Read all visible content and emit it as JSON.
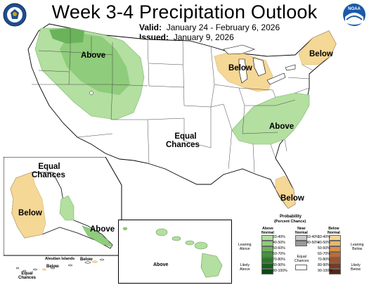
{
  "header": {
    "title": "Week 3-4 Precipitation Outlook",
    "valid_label": "Valid:",
    "valid_value": "January 24 - February 6, 2026",
    "issued_label": "Issued:",
    "issued_value": "January 9, 2026"
  },
  "logos": {
    "left": "commerce-seal-icon",
    "right": "noaa-logo-icon",
    "noaa_text": "NOAA"
  },
  "map_labels": {
    "above_northwest": "Above",
    "below_great_lakes": "Below",
    "below_northeast": "Below",
    "above_southeast": "Above",
    "equal_center_line1": "Equal",
    "equal_center_line2": "Chances",
    "below_florida": "Below",
    "alaska_equal_line1": "Equal",
    "alaska_equal_line2": "Chances",
    "alaska_below": "Below",
    "alaska_above": "Above",
    "aleutian_title": "Aleutian Islands",
    "aleutian_below_1": "Below",
    "aleutian_below_2": "Below",
    "aleutian_equal_line1": "Equal",
    "aleutian_equal_line2": "Chances",
    "hawaii_above": "Above"
  },
  "legend": {
    "title_line1": "Probability",
    "title_line2": "(Percent Chance)",
    "above_header": [
      "Above",
      "Normal"
    ],
    "near_header": [
      "Near",
      "Normal"
    ],
    "below_header": [
      "Below",
      "Normal"
    ],
    "leaning_above": [
      "Leaning",
      "Above"
    ],
    "likely_above": [
      "Likely",
      "Above"
    ],
    "leaning_below": [
      "Leaning",
      "Below"
    ],
    "likely_below": [
      "Likely",
      "Below"
    ],
    "equal_chances": [
      "Equal",
      "Chances"
    ],
    "ranges": [
      "33-40%",
      "40-50%",
      "50-60%",
      "60-70%",
      "70-80%",
      "80-90%",
      "90-100%"
    ],
    "near_ranges": [
      "33-40%",
      "40-50%"
    ],
    "above_colors": [
      "#b3dfa0",
      "#8fcc7b",
      "#6ab35a",
      "#3f9638",
      "#2a7a27",
      "#17611a",
      "#0b4a10"
    ],
    "near_colors": [
      "#c8c8c8",
      "#9a9a9a"
    ],
    "below_colors": [
      "#f5d796",
      "#e9b66c",
      "#d99048",
      "#c06a35",
      "#a0522d",
      "#7a3a1f",
      "#552615"
    ],
    "equal_color": "#ffffff"
  }
}
